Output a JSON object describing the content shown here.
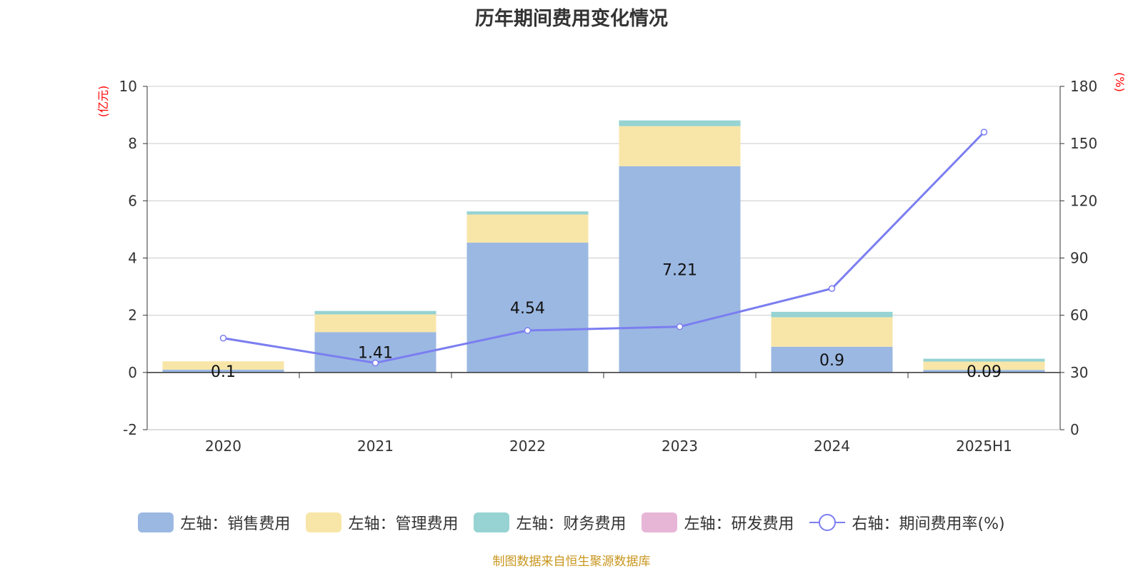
{
  "title": "历年期间费用变化情况",
  "source": "制图数据来自恒生聚源数据库",
  "colors": {
    "sales": "#9bb8e2",
    "admin": "#f8e6a8",
    "finance": "#96d3d2",
    "rd": "#e7b6d7",
    "rate": "#7b7ef0",
    "unit": "#ff0000",
    "source": "#c8961e"
  },
  "legend": [
    {
      "key": "sales",
      "label": "左轴：销售费用"
    },
    {
      "key": "admin",
      "label": "左轴：管理费用"
    },
    {
      "key": "finance",
      "label": "左轴：财务费用"
    },
    {
      "key": "rd",
      "label": "左轴：研发费用"
    },
    {
      "key": "rate",
      "label": "右轴：期间费用率(%)"
    }
  ],
  "chart_data": {
    "type": "bar",
    "stacked": true,
    "title": "历年期间费用变化情况",
    "categories": [
      "2020",
      "2021",
      "2022",
      "2023",
      "2024",
      "2025H1"
    ],
    "left_axis": {
      "unit": "(亿元)",
      "ylim": [
        -2,
        10
      ],
      "ticks": [
        -2,
        0,
        2,
        4,
        6,
        8,
        10
      ]
    },
    "right_axis": {
      "unit": "(%)",
      "ylim": [
        0,
        180
      ],
      "ticks": [
        0,
        30,
        60,
        90,
        120,
        150,
        180
      ]
    },
    "series": [
      {
        "name": "左轴：销售费用",
        "key": "sales",
        "axis": "left",
        "values": [
          0.1,
          1.41,
          4.54,
          7.21,
          0.9,
          0.09
        ],
        "data_labels": [
          "0.1",
          "1.41",
          "4.54",
          "7.21",
          "0.9",
          "0.09"
        ]
      },
      {
        "name": "左轴：管理费用",
        "key": "admin",
        "axis": "left",
        "values": [
          0.29,
          0.62,
          0.98,
          1.4,
          1.03,
          0.29
        ]
      },
      {
        "name": "左轴：财务费用",
        "key": "finance",
        "axis": "left",
        "values": [
          0.0,
          0.12,
          0.11,
          0.2,
          0.19,
          0.1
        ]
      },
      {
        "name": "左轴：研发费用",
        "key": "rd",
        "axis": "left",
        "values": [
          0,
          0,
          0,
          0,
          0,
          0
        ]
      },
      {
        "name": "右轴：期间费用率(%)",
        "key": "rate",
        "axis": "right",
        "type": "line",
        "values": [
          48,
          35,
          52,
          54,
          74,
          156
        ]
      }
    ],
    "grid": true,
    "legend_position": "bottom"
  }
}
